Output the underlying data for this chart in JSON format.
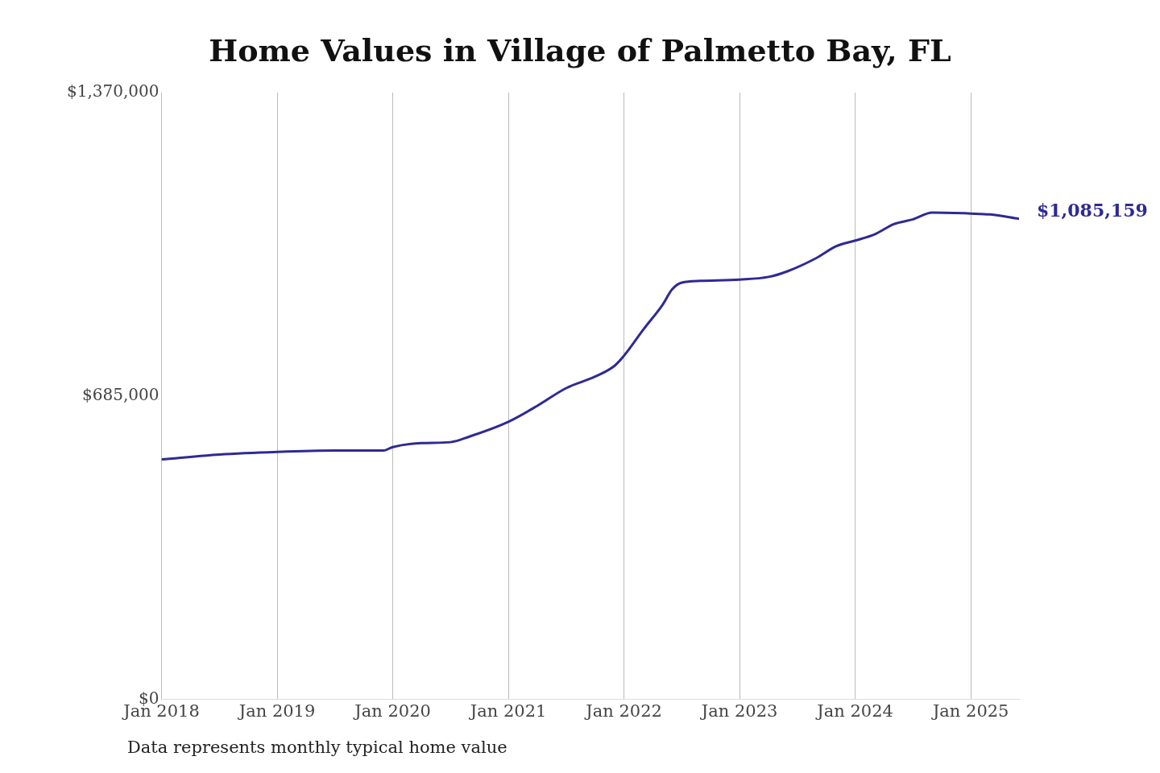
{
  "chart_data": {
    "type": "line",
    "title": "Home Values in Village of Palmetto Bay, FL",
    "x": [
      "2018-01",
      "2018-07",
      "2019-01",
      "2019-07",
      "2019-12",
      "2020-01",
      "2020-04",
      "2020-07",
      "2020-09",
      "2021-01",
      "2021-04",
      "2021-07",
      "2021-10",
      "2021-12",
      "2022-01",
      "2022-03",
      "2022-05",
      "2022-06",
      "2022-07",
      "2022-09",
      "2023-01",
      "2023-04",
      "2023-06",
      "2023-09",
      "2023-11",
      "2024-01",
      "2024-03",
      "2024-05",
      "2024-07",
      "2024-09",
      "2025-01",
      "2025-03",
      "2025-06"
    ],
    "series": [
      {
        "color": "#2e2a94",
        "values": [
          542000,
          553000,
          559000,
          562000,
          562000,
          570000,
          579000,
          581000,
          594000,
          627000,
          663000,
          703000,
          729000,
          753000,
          776000,
          835000,
          891000,
          926000,
          941000,
          945000,
          948000,
          954000,
          967000,
          997000,
          1023000,
          1036000,
          1050000,
          1073000,
          1084000,
          1099000,
          1097000,
          1095000,
          1085159
        ]
      }
    ],
    "xticks": [
      {
        "value": "2018-01",
        "label": "Jan 2018"
      },
      {
        "value": "2019-01",
        "label": "Jan 2019"
      },
      {
        "value": "2020-01",
        "label": "Jan 2020"
      },
      {
        "value": "2021-01",
        "label": "Jan 2021"
      },
      {
        "value": "2022-01",
        "label": "Jan 2022"
      },
      {
        "value": "2023-01",
        "label": "Jan 2023"
      },
      {
        "value": "2024-01",
        "label": "Jan 2024"
      },
      {
        "value": "2025-01",
        "label": "Jan 2025"
      }
    ],
    "xlim": [
      "2018-01",
      "2025-06"
    ],
    "ylim": [
      0,
      1370000
    ],
    "yticks": [
      {
        "value": 0,
        "label": "$0"
      },
      {
        "value": 685000,
        "label": "$685,000"
      },
      {
        "value": 1370000,
        "label": "$1,370,000"
      }
    ],
    "grid": "x",
    "legend": false,
    "marker": "none",
    "line_style": "solid",
    "annotations": [
      {
        "text": "$1,085,159",
        "x": "2025-06",
        "y": 1085159
      },
      "Data represents monthly typical home value"
    ]
  }
}
